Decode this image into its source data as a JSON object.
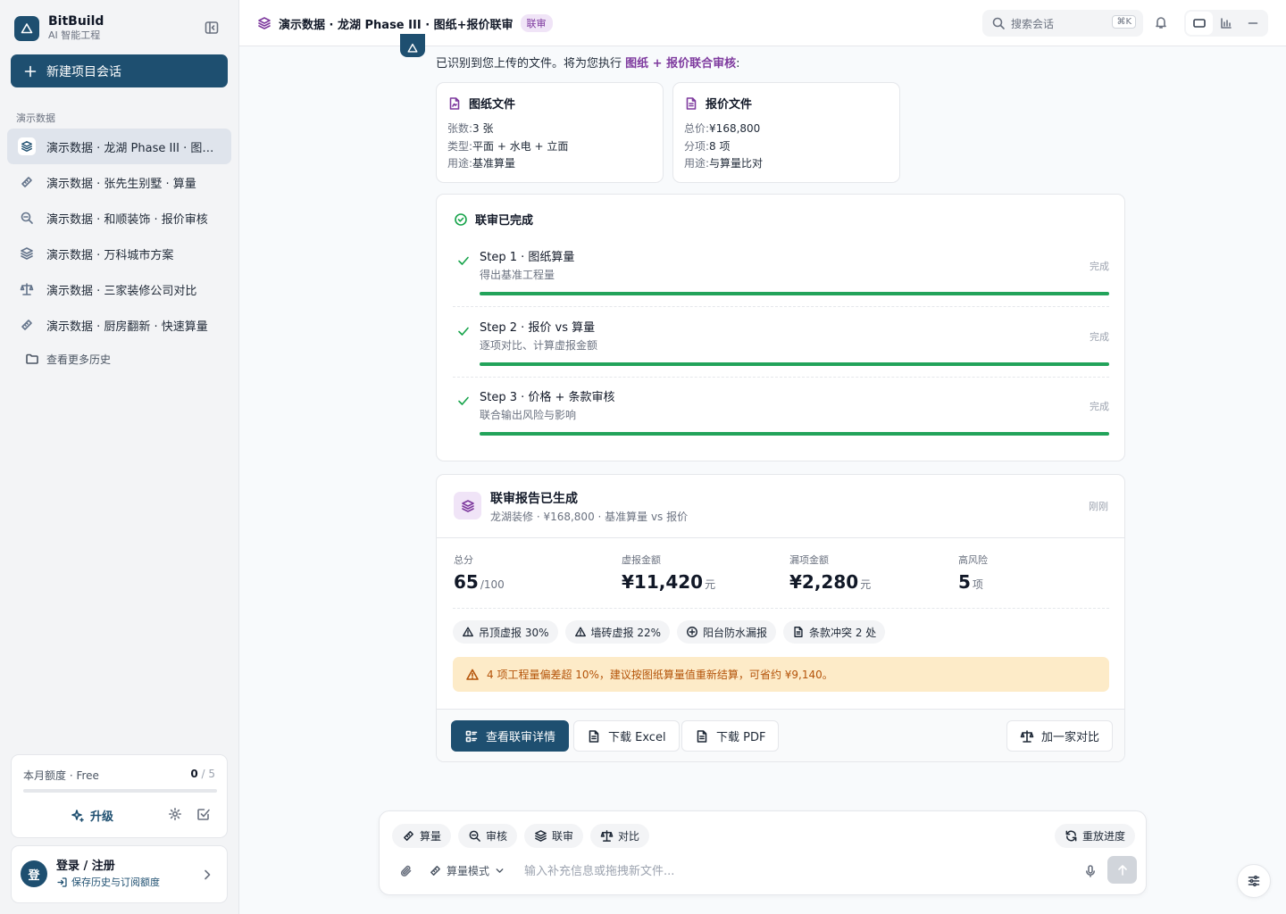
{
  "sidebar": {
    "brand_name": "BitBuild",
    "brand_sub": "AI 智能工程",
    "new_button": "新建项目会话",
    "section_label": "演示数据",
    "items": [
      {
        "label": "演示数据 · 龙湖 Phase III · 图纸+报价联审",
        "icon": "layers-icon",
        "active": true
      },
      {
        "label": "演示数据 · 张先生别墅 · 算量",
        "icon": "ruler-icon",
        "active": false
      },
      {
        "label": "演示数据 · 和顺装饰 · 报价审核",
        "icon": "search-doc-icon",
        "active": false
      },
      {
        "label": "演示数据 · 万科城市方案",
        "icon": "layers-icon",
        "active": false
      },
      {
        "label": "演示数据 · 三家装修公司对比",
        "icon": "scale-icon",
        "active": false
      },
      {
        "label": "演示数据 · 厨房翻新 · 快速算量",
        "icon": "ruler-icon",
        "active": false
      }
    ],
    "more_history": "查看更多历史",
    "quota": {
      "title": "本月额度 · Free",
      "used": "0",
      "total": " / 5",
      "progress": 0,
      "upgrade": "升级"
    },
    "login": {
      "avatar": "登",
      "title": "登录 / 注册",
      "subtitle": "保存历史与订阅额度"
    }
  },
  "header": {
    "title": "演示数据 · 龙湖 Phase III · 图纸+报价联审",
    "badge": "联审",
    "search_placeholder": "搜索会话",
    "shortcut": "⌘K"
  },
  "main": {
    "intro_prefix": "已识别到您上传的文件。将为您执行 ",
    "intro_highlight": "图纸 + 报价联合审核",
    "intro_suffix": ":",
    "files": [
      {
        "title": "图纸文件",
        "rows": [
          {
            "k": "张数:",
            "v": "3 张"
          },
          {
            "k": "类型:",
            "v": "平面 + 水电 + 立面"
          },
          {
            "k": "用途:",
            "v": "基准算量"
          }
        ]
      },
      {
        "title": "报价文件",
        "rows": [
          {
            "k": "总价:",
            "v": "¥168,800"
          },
          {
            "k": "分项:",
            "v": "8 项"
          },
          {
            "k": "用途:",
            "v": "与算量比对"
          }
        ]
      }
    ],
    "steps_title": "联审已完成",
    "steps": [
      {
        "title": "Step 1 · 图纸算量",
        "sub": "得出基准工程量",
        "status": "完成",
        "progress": 1
      },
      {
        "title": "Step 2 · 报价 vs 算量",
        "sub": "逐项对比、计算虚报金额",
        "status": "完成",
        "progress": 1
      },
      {
        "title": "Step 3 · 价格 + 条款审核",
        "sub": "联合输出风险与影响",
        "status": "完成",
        "progress": 1
      }
    ],
    "report": {
      "title": "联审报告已生成",
      "subtitle": "龙湖装修 · ¥168,800 · 基准算量 vs 报价",
      "time": "刚刚",
      "stats": [
        {
          "label": "总分",
          "value": "65",
          "unit": "/100"
        },
        {
          "label": "虚报金额",
          "value": "¥11,420",
          "unit": "元"
        },
        {
          "label": "漏项金额",
          "value": "¥2,280",
          "unit": "元"
        },
        {
          "label": "高风险",
          "value": "5",
          "unit": "项"
        }
      ],
      "tags": [
        {
          "label": "吊顶虚报 30%",
          "icon": "warning-icon"
        },
        {
          "label": "墙砖虚报 22%",
          "icon": "warning-icon"
        },
        {
          "label": "阳台防水漏报",
          "icon": "plus-circle-icon"
        },
        {
          "label": "条款冲突 2 处",
          "icon": "document-icon"
        }
      ],
      "warning": "4 项工程量偏差超 10%，建议按图纸算量值重新结算，可省约 ¥9,140。",
      "buttons": {
        "details": "查看联审详情",
        "excel": "下载 Excel",
        "pdf": "下载 PDF",
        "compare": "加一家对比"
      }
    }
  },
  "composer": {
    "chips": [
      {
        "label": "算量",
        "icon": "ruler-icon"
      },
      {
        "label": "审核",
        "icon": "search-doc-icon"
      },
      {
        "label": "联审",
        "icon": "layers-icon"
      },
      {
        "label": "对比",
        "icon": "scale-icon"
      }
    ],
    "replay": "重放进度",
    "mode": "算量模式",
    "placeholder": "输入补充信息或拖拽新文件..."
  },
  "colors": {
    "brand": "#1e4f70",
    "accent": "#7e3a9e",
    "success": "#22a35a",
    "warning_bg": "#fdebc8",
    "warning_text": "#b45309"
  }
}
